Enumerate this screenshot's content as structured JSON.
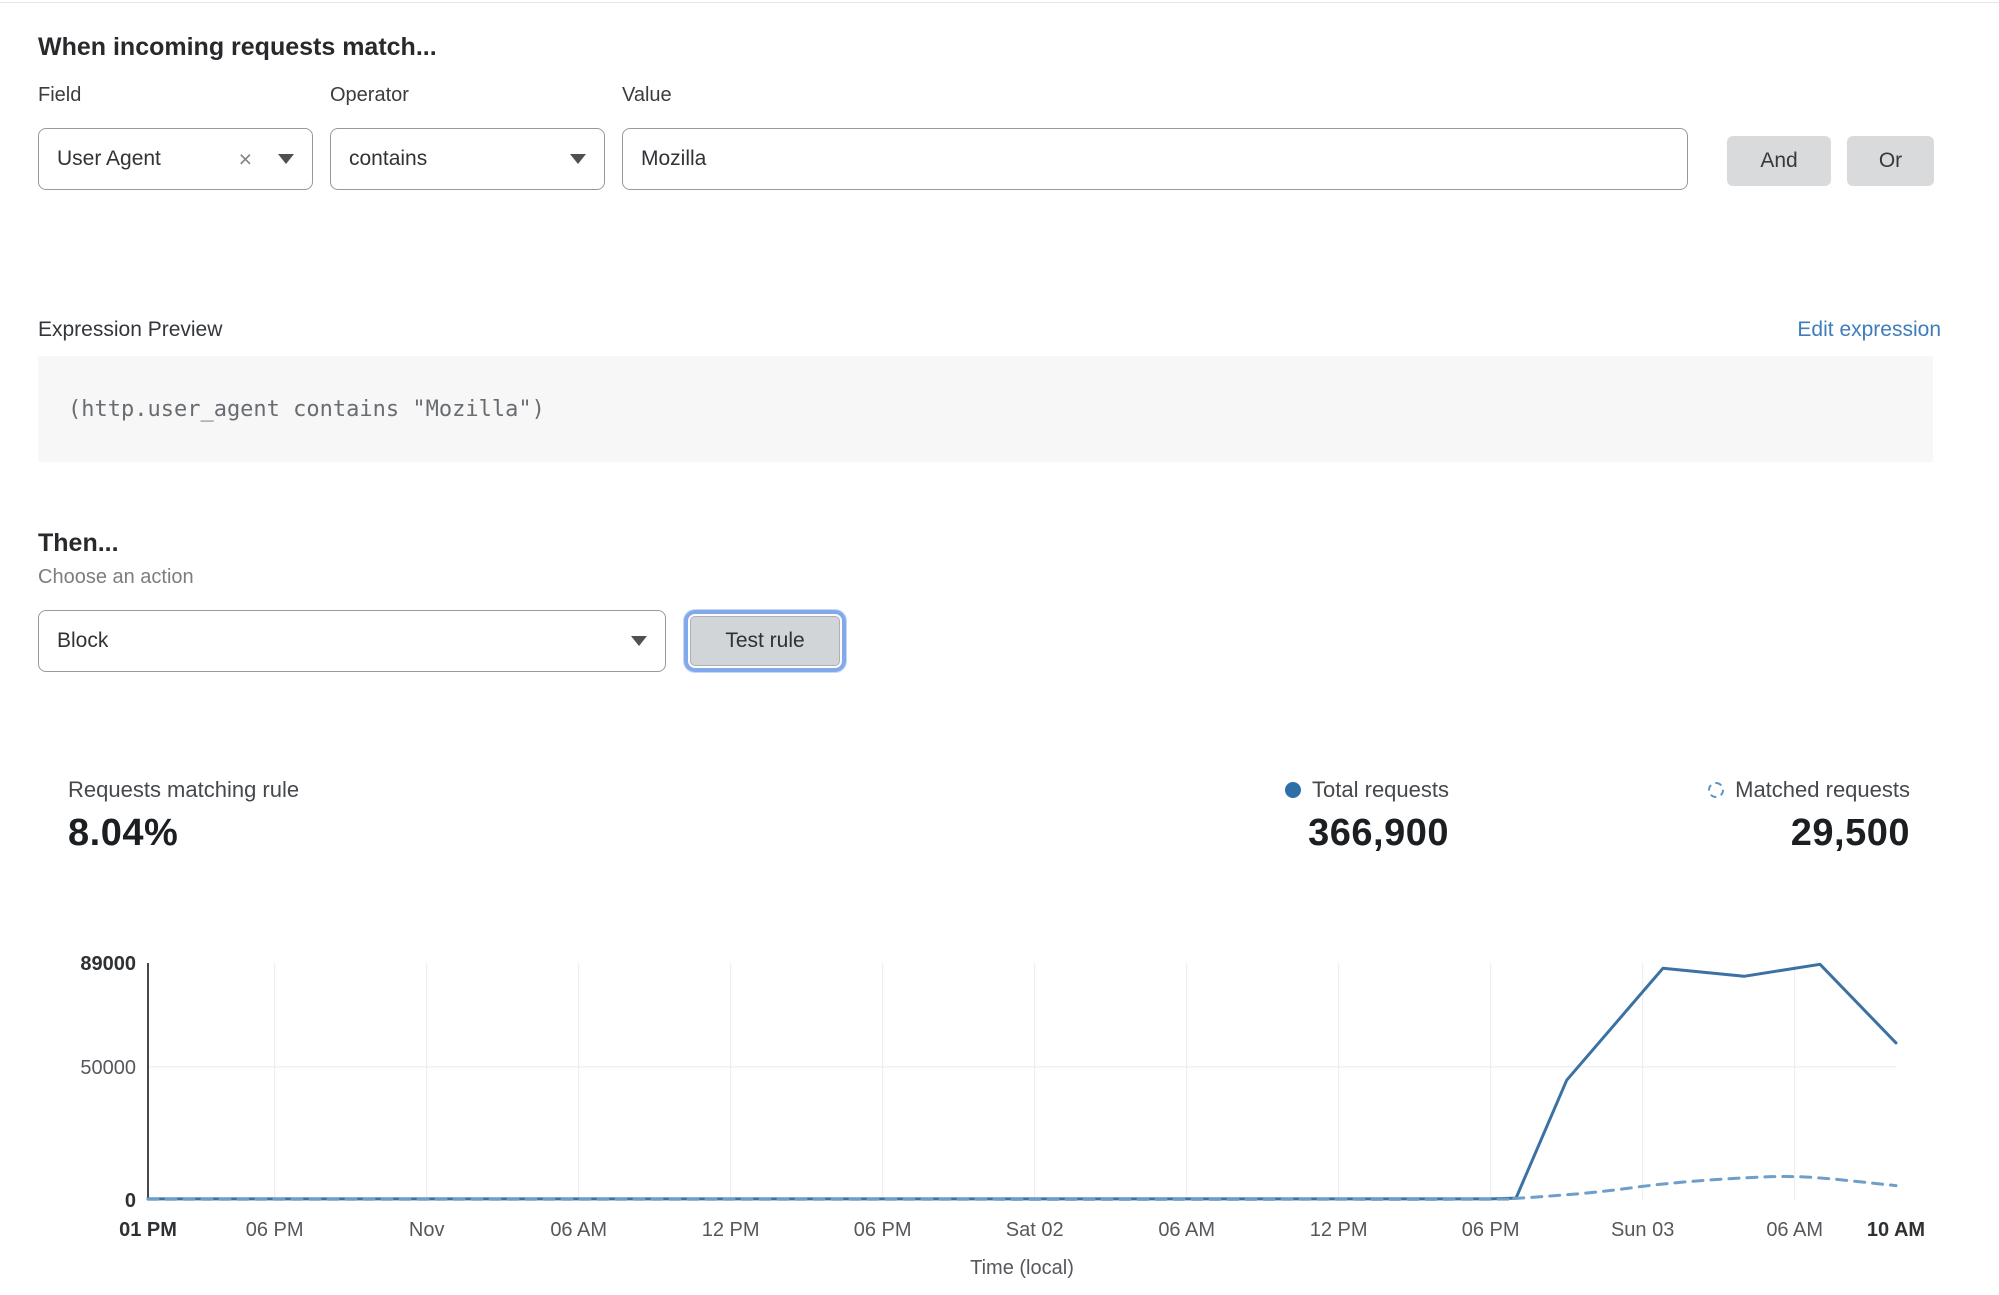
{
  "rule_builder": {
    "title": "When incoming requests match...",
    "field": {
      "label": "Field",
      "value": "User Agent"
    },
    "operator": {
      "label": "Operator",
      "value": "contains"
    },
    "value": {
      "label": "Value",
      "value": "Mozilla"
    },
    "and_label": "And",
    "or_label": "Or"
  },
  "expression": {
    "label": "Expression Preview",
    "edit_link": "Edit expression",
    "code": "(http.user_agent contains \"Mozilla\")"
  },
  "action": {
    "title": "Then...",
    "label": "Choose an action",
    "value": "Block",
    "test_button": "Test rule"
  },
  "stats": {
    "matching": {
      "label": "Requests matching rule",
      "value": "8.04%"
    },
    "total": {
      "label": "Total requests",
      "value": "366,900"
    },
    "matched": {
      "label": "Matched requests",
      "value": "29,500"
    }
  },
  "colors": {
    "link_blue": "#3e7cbb",
    "focus_ring_blue": "#82a9ea",
    "button_gray": "#d8dadc",
    "code_background": "#f7f7f8",
    "legend_dot_blue": "#2f6fa8",
    "legend_dashed_blue": "#5b93c6"
  },
  "chart_data": {
    "type": "line",
    "title": "",
    "xlabel": "Time (local)",
    "ylabel": "",
    "ylim": [
      0,
      89000
    ],
    "x_range_hours": [
      0,
      69
    ],
    "grid": {
      "vertical_ticks": true,
      "horizontal_at": [
        50000
      ]
    },
    "legend_position": "top-right",
    "y_ticks": [
      {
        "value": 0,
        "label": "0",
        "bold": true
      },
      {
        "value": 50000,
        "label": "50000",
        "bold": false
      },
      {
        "value": 89000,
        "label": "89000",
        "bold": true
      }
    ],
    "x_ticks": [
      {
        "hour": 0,
        "label": "01 PM",
        "bold": true
      },
      {
        "hour": 5,
        "label": "06 PM",
        "bold": false
      },
      {
        "hour": 11,
        "label": "Nov",
        "bold": false
      },
      {
        "hour": 17,
        "label": "06 AM",
        "bold": false
      },
      {
        "hour": 23,
        "label": "12 PM",
        "bold": false
      },
      {
        "hour": 29,
        "label": "06 PM",
        "bold": false
      },
      {
        "hour": 35,
        "label": "Sat 02",
        "bold": false
      },
      {
        "hour": 41,
        "label": "06 AM",
        "bold": false
      },
      {
        "hour": 47,
        "label": "12 PM",
        "bold": false
      },
      {
        "hour": 53,
        "label": "06 PM",
        "bold": false
      },
      {
        "hour": 59,
        "label": "Sun 03",
        "bold": false
      },
      {
        "hour": 65,
        "label": "06 AM",
        "bold": false
      },
      {
        "hour": 69,
        "label": "10 AM",
        "bold": true
      }
    ],
    "series": [
      {
        "name": "Total requests",
        "style": "solid",
        "smooth": false,
        "color": "#3b72a3",
        "points": [
          [
            0,
            400
          ],
          [
            10,
            400
          ],
          [
            20,
            400
          ],
          [
            30,
            400
          ],
          [
            40,
            400
          ],
          [
            50,
            400
          ],
          [
            53,
            400
          ],
          [
            54,
            700
          ],
          [
            56,
            45000
          ],
          [
            59.8,
            87000
          ],
          [
            63,
            84000
          ],
          [
            66,
            88500
          ],
          [
            69,
            59000
          ]
        ]
      },
      {
        "name": "Matched requests",
        "style": "dashed",
        "smooth": true,
        "color": "#6e9fca",
        "points": [
          [
            0,
            250
          ],
          [
            15,
            250
          ],
          [
            30,
            250
          ],
          [
            45,
            250
          ],
          [
            53,
            300
          ],
          [
            54,
            600
          ],
          [
            57,
            2800
          ],
          [
            60,
            6200
          ],
          [
            63,
            8300
          ],
          [
            65.5,
            8600
          ],
          [
            69,
            5400
          ]
        ]
      }
    ],
    "colors": {
      "grid": "#e9eaec",
      "axis": "#45484c",
      "tick": "#55585c",
      "tick_bold": "#2e3134"
    }
  }
}
